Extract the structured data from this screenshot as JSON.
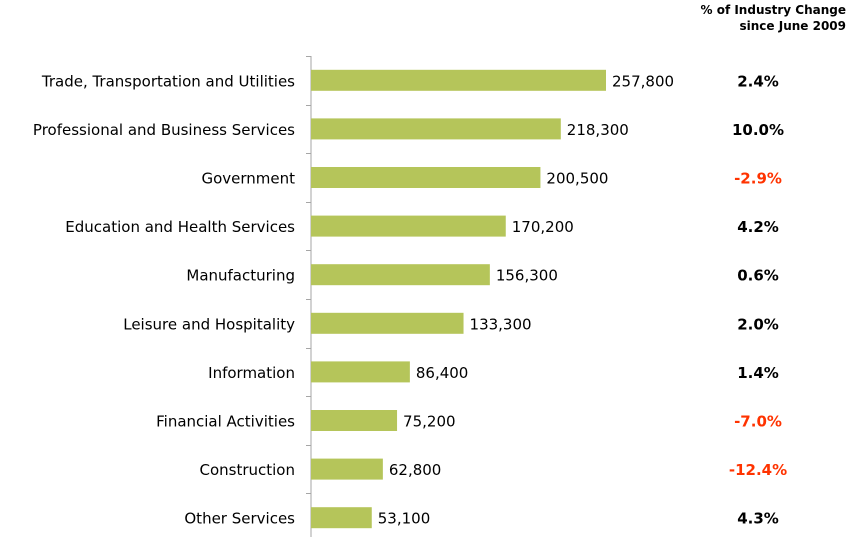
{
  "header": {
    "line1": "% of Industry Change",
    "line2": "since June 2009"
  },
  "colors": {
    "bar": "#b5c55a",
    "axis": "#a6a6a6",
    "positive_pct": "#000000",
    "negative_pct": "#ff3300"
  },
  "chart_data": {
    "type": "bar",
    "orientation": "horizontal",
    "title": "",
    "xlabel": "",
    "ylabel": "",
    "categories": [
      "Trade, Transportation and Utilities",
      "Professional and Business Services",
      "Government",
      "Education and Health Services",
      "Manufacturing",
      "Leisure and Hospitality",
      "Information",
      "Financial Activities",
      "Construction",
      "Other Services"
    ],
    "values": [
      257800,
      218300,
      200500,
      170200,
      156300,
      133300,
      86400,
      75200,
      62800,
      53100
    ],
    "value_labels": [
      "257,800",
      "218,300",
      "200,500",
      "170,200",
      "156,300",
      "133,300",
      "86,400",
      "75,200",
      "62,800",
      "53,100"
    ],
    "pct_change": [
      2.4,
      10.0,
      -2.9,
      4.2,
      0.6,
      2.0,
      1.4,
      -7.0,
      -12.4,
      4.3
    ],
    "pct_labels": [
      "2.4%",
      "10.0%",
      "-2.9%",
      "4.2%",
      "0.6%",
      "2.0%",
      "1.4%",
      "-7.0%",
      "-12.4%",
      "4.3%"
    ],
    "xlim": [
      0,
      300000
    ],
    "grid": false,
    "legend": "none"
  }
}
